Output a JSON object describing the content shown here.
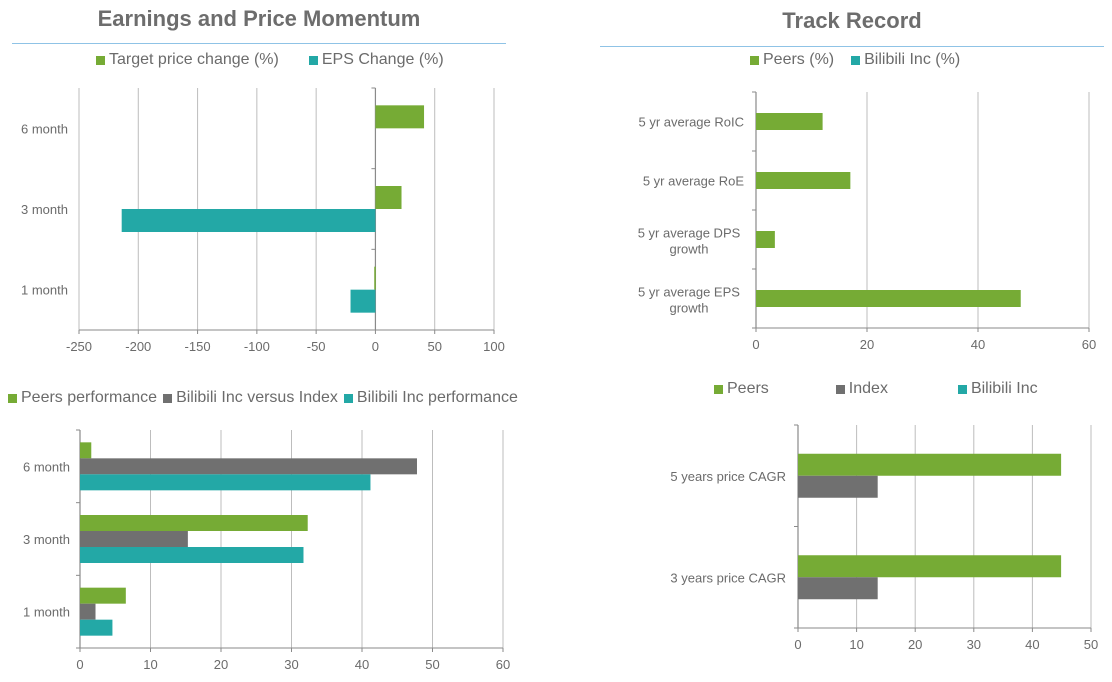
{
  "colors": {
    "green": "#76ab35",
    "teal": "#23a8a6",
    "gray": "#707070",
    "grid": "#bdbdbd",
    "axis": "#8a8a8a",
    "title": "#6d6d6d",
    "rule": "#8fc3e6"
  },
  "sections": {
    "left_title": "Earnings and Price Momentum",
    "right_title": "Track Record"
  },
  "chart_data": [
    {
      "id": "momentum",
      "type": "bar",
      "orientation": "horizontal",
      "title": "Earnings and Price Momentum",
      "categories": [
        "6 month",
        "3 month",
        "1 month"
      ],
      "series": [
        {
          "name": "Target price change (%)",
          "color": "#76ab35",
          "values": [
            41,
            22,
            -1
          ]
        },
        {
          "name": "EPS Change (%)",
          "color": "#23a8a6",
          "values": [
            0,
            -214,
            -21
          ]
        }
      ],
      "xlim": [
        -250,
        100
      ],
      "xticks": [
        "-250",
        "-200",
        "-150",
        "-100",
        "-50",
        "0",
        "50",
        "100"
      ],
      "grid": true,
      "legend_position": "top"
    },
    {
      "id": "track_record",
      "type": "bar",
      "orientation": "horizontal",
      "title": "Track Record",
      "categories": [
        "5 yr average RoIC",
        "5 yr average RoE",
        "5 yr average DPS growth",
        "5 yr average EPS growth"
      ],
      "series": [
        {
          "name": "Peers (%)",
          "color": "#76ab35",
          "values": [
            12,
            17,
            3.4,
            47.7
          ]
        },
        {
          "name": "Bilibili Inc (%)",
          "color": "#23a8a6",
          "values": [
            null,
            null,
            null,
            null
          ]
        }
      ],
      "xlim": [
        0,
        60
      ],
      "xticks": [
        "0",
        "20",
        "40",
        "60"
      ],
      "grid": true,
      "legend_position": "top"
    },
    {
      "id": "performance",
      "type": "bar",
      "orientation": "horizontal",
      "title": "",
      "categories": [
        "6 month",
        "3 month",
        "1 month"
      ],
      "series": [
        {
          "name": "Peers performance",
          "color": "#76ab35",
          "values": [
            1.6,
            32.3,
            6.5
          ]
        },
        {
          "name": "Bilibili Inc versus Index",
          "color": "#707070",
          "values": [
            47.8,
            15.3,
            2.2
          ]
        },
        {
          "name": "Bilibili Inc performance",
          "color": "#23a8a6",
          "values": [
            41.2,
            31.7,
            4.6
          ]
        }
      ],
      "xlim": [
        0,
        60
      ],
      "xticks": [
        "0",
        "10",
        "20",
        "30",
        "40",
        "50",
        "60"
      ],
      "grid": true,
      "legend_position": "top"
    },
    {
      "id": "cagr",
      "type": "bar",
      "orientation": "horizontal",
      "title": "",
      "categories": [
        "5 years price CAGR",
        "3 years price CAGR"
      ],
      "series": [
        {
          "name": "Peers",
          "color": "#76ab35",
          "values": [
            44.9,
            44.9
          ]
        },
        {
          "name": "Index",
          "color": "#707070",
          "values": [
            13.6,
            13.6
          ]
        },
        {
          "name": "Bilibili Inc",
          "color": "#23a8a6",
          "values": [
            null,
            null
          ]
        }
      ],
      "xlim": [
        0,
        50
      ],
      "xticks": [
        "0",
        "10",
        "20",
        "30",
        "40",
        "50"
      ],
      "grid": true,
      "legend_position": "top"
    }
  ]
}
